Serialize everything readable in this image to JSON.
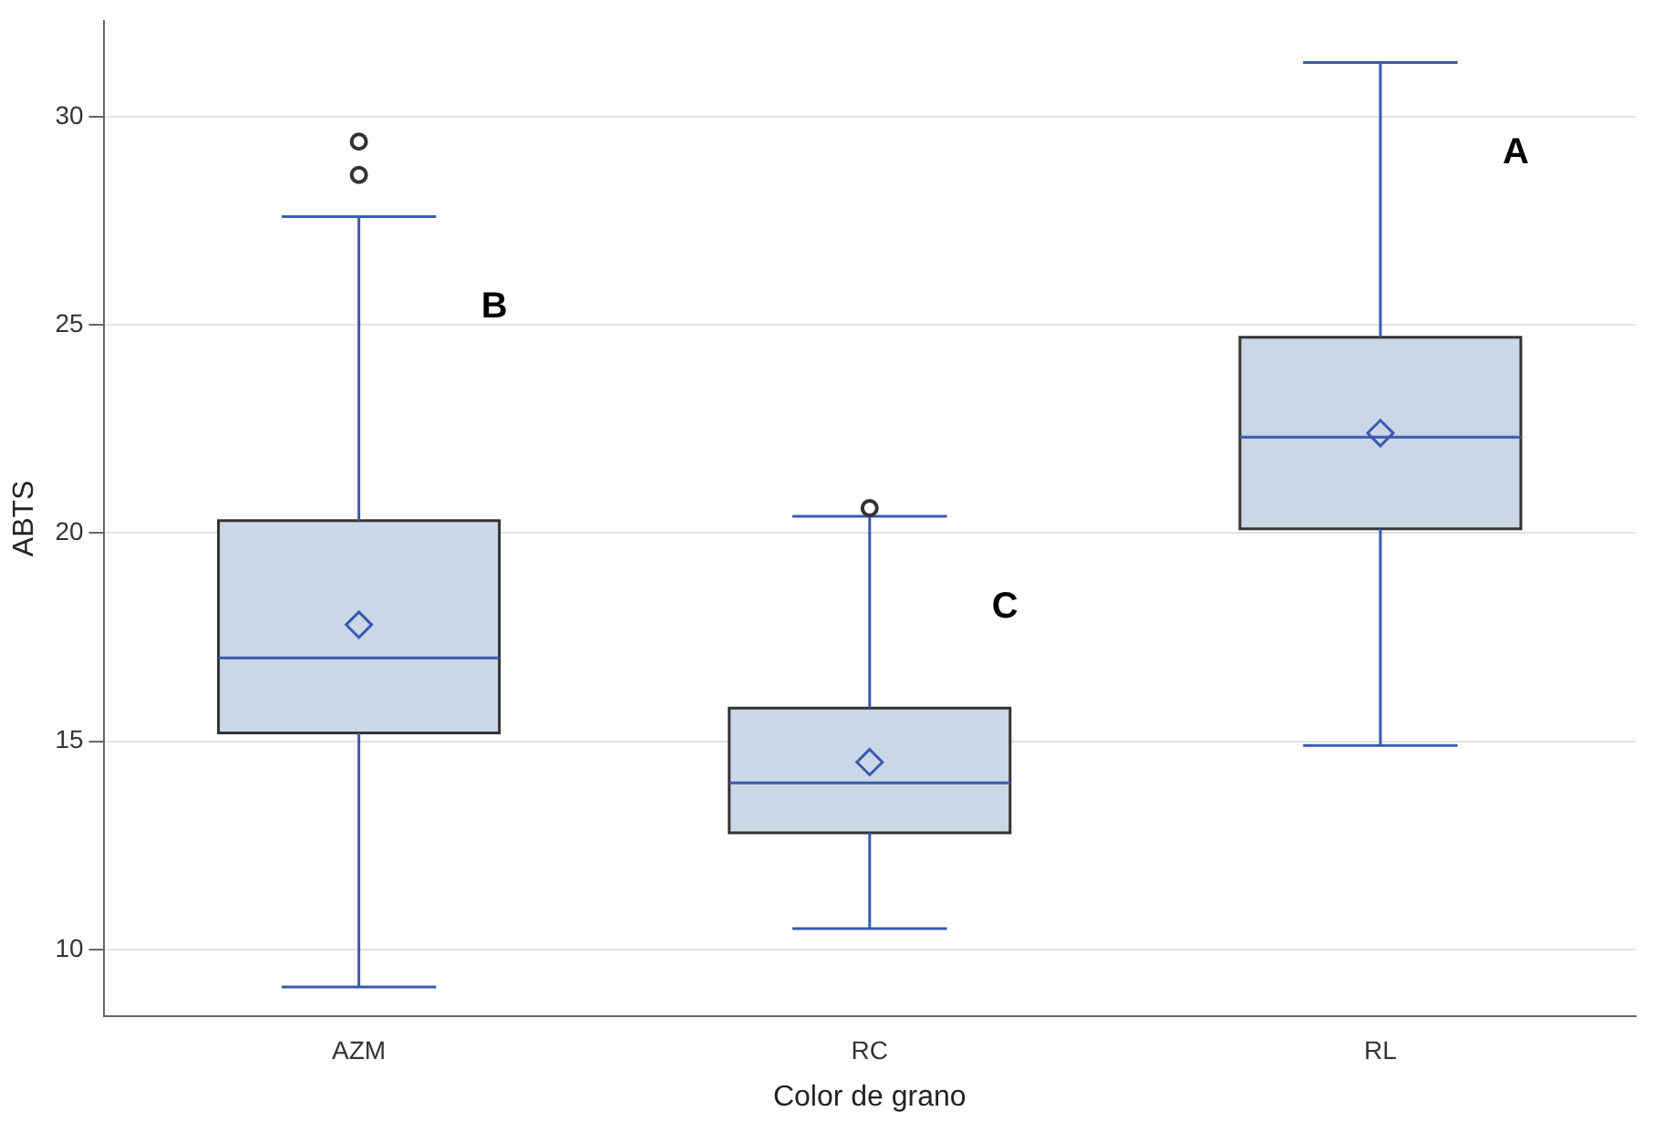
{
  "chart_data": {
    "type": "box",
    "xlabel": "Color de grano",
    "ylabel": "ABTS",
    "categories": [
      "AZM",
      "RC",
      "RL"
    ],
    "color": "#cbd6e6",
    "boxes": [
      {
        "low": 9.1,
        "q1": 15.2,
        "median": 17.0,
        "q3": 20.3,
        "high": 27.6,
        "mean": 17.8,
        "outliers": [
          28.6,
          29.4
        ]
      },
      {
        "low": 10.5,
        "q1": 12.8,
        "median": 14.0,
        "q3": 15.8,
        "high": 20.4,
        "mean": 14.5,
        "outliers": [
          20.6
        ]
      },
      {
        "low": 14.9,
        "q1": 20.1,
        "median": 22.3,
        "q3": 24.7,
        "high": 31.3,
        "mean": 22.4
      }
    ],
    "ylim": [
      8.4,
      32.3
    ],
    "yticks": [
      10,
      15,
      20,
      25,
      30
    ],
    "grid": "y",
    "annotations": [
      "B",
      "C",
      "A"
    ]
  }
}
